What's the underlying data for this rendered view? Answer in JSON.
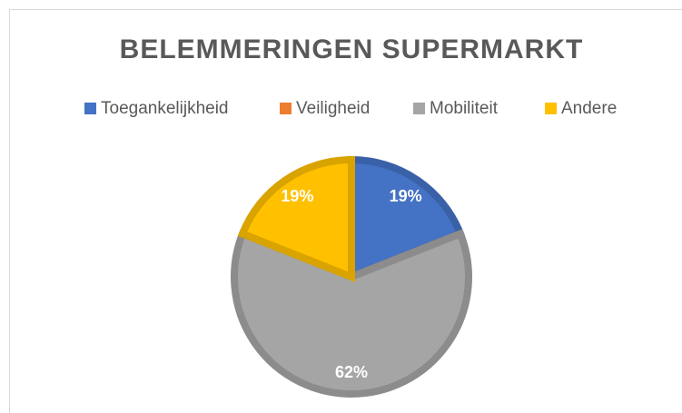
{
  "chart_data": {
    "type": "pie",
    "title": "BELEMMERINGEN SUPERMARKT",
    "categories": [
      "Toegankelijkheid",
      "Veiligheid",
      "Mobiliteit",
      "Andere"
    ],
    "values": [
      19,
      0,
      62,
      19
    ],
    "value_labels": [
      "19%",
      null,
      "62%",
      "19%"
    ],
    "colors": [
      "#4472c4",
      "#ed7d31",
      "#a5a5a5",
      "#ffc000"
    ],
    "legend": "top"
  }
}
